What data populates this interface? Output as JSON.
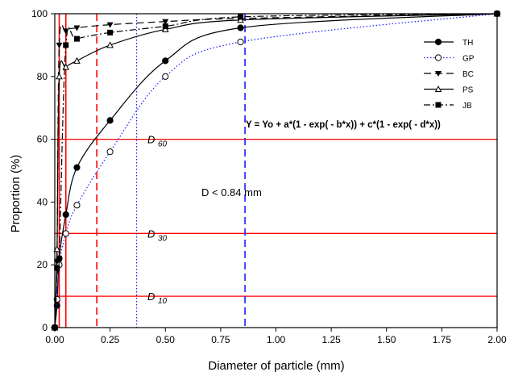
{
  "chart_data": {
    "type": "line",
    "xlabel": "Diameter of particle (mm)",
    "ylabel": "Proportion (%)",
    "xlim": [
      0,
      2.0
    ],
    "ylim": [
      0,
      100
    ],
    "xticks": [
      "0.00",
      "0.25",
      "0.50",
      "0.75",
      "1.00",
      "1.25",
      "1.50",
      "1.75",
      "2.00"
    ],
    "yticks": [
      "0",
      "20",
      "40",
      "60",
      "80",
      "100"
    ],
    "grid": false,
    "legend_position": "right",
    "equation": "Y = Yo + a*(1 - exp( - b*x)) + c*(1 - exp( - d*x))",
    "annotation": "D < 0.84 mm",
    "series": [
      {
        "name": "TH",
        "color": "#000000",
        "marker": "filled-circle",
        "line": "solid",
        "x": [
          0,
          0.01,
          0.02,
          0.05,
          0.1,
          0.25,
          0.5,
          0.84,
          2.0
        ],
        "y": [
          0,
          7,
          22,
          36,
          51,
          66,
          85,
          95.5,
          100
        ]
      },
      {
        "name": "GP",
        "color": "#1a1aff",
        "marker": "open-circle",
        "line": "dotted",
        "x": [
          0,
          0.01,
          0.02,
          0.05,
          0.1,
          0.25,
          0.5,
          0.84,
          2.0
        ],
        "y": [
          0,
          9,
          20,
          30,
          39,
          56,
          80,
          91,
          100
        ]
      },
      {
        "name": "BC",
        "color": "#000000",
        "marker": "filled-triangle-down",
        "line": "dashed",
        "x": [
          0,
          0.01,
          0.02,
          0.05,
          0.1,
          0.25,
          0.5,
          0.84,
          2.0
        ],
        "y": [
          0,
          21,
          90,
          94.5,
          95.5,
          96.5,
          97.5,
          98.5,
          100
        ]
      },
      {
        "name": "PS",
        "color": "#000000",
        "marker": "open-triangle-up",
        "line": "solid",
        "x": [
          0,
          0.01,
          0.02,
          0.05,
          0.1,
          0.25,
          0.5,
          0.84,
          2.0
        ],
        "y": [
          0,
          25,
          80,
          83,
          85,
          90,
          95,
          98,
          100
        ]
      },
      {
        "name": "JB",
        "color": "#000000",
        "marker": "filled-square",
        "line": "dash-dot",
        "x": [
          0,
          0.01,
          0.02,
          0.05,
          0.1,
          0.25,
          0.5,
          0.84,
          2.0
        ],
        "y": [
          0,
          19,
          22,
          90,
          92,
          94,
          96,
          99,
          100
        ]
      }
    ],
    "reference_lines": {
      "horizontal": [
        {
          "label_main": "D",
          "label_sub": "60",
          "y": 60,
          "color": "#ff0000"
        },
        {
          "label_main": "D",
          "label_sub": "30",
          "y": 30,
          "color": "#ff0000"
        },
        {
          "label_main": "D",
          "label_sub": "10",
          "y": 10,
          "color": "#ff0000"
        }
      ],
      "vertical": [
        {
          "x": 0.02,
          "color": "#ff0000",
          "style": "solid"
        },
        {
          "x": 0.05,
          "color": "#ff0000",
          "style": "solid"
        },
        {
          "x": 0.19,
          "color": "#ff0000",
          "style": "dashed"
        },
        {
          "x": 0.37,
          "color": "#1a1aff",
          "style": "dotted"
        },
        {
          "x": 0.86,
          "color": "#1a1aff",
          "style": "dashed"
        }
      ]
    }
  }
}
